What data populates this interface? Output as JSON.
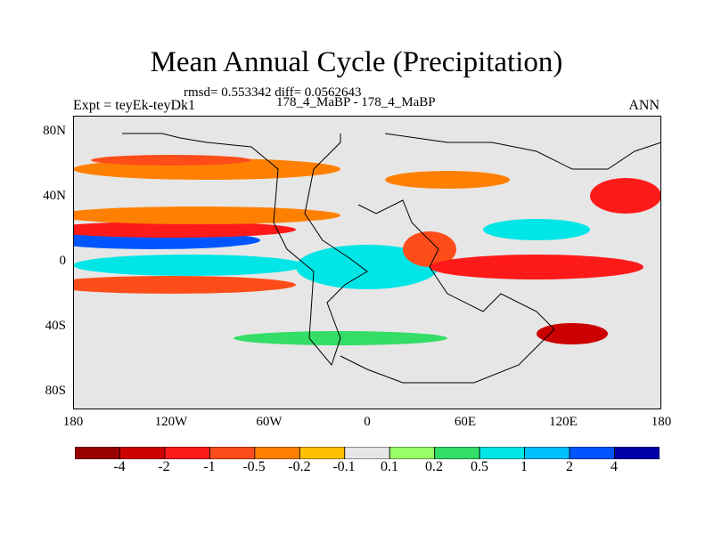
{
  "title": "Mean Annual Cycle (Precipitation)",
  "stats_line": "rmsd= 0.553342 diff= 0.0562643",
  "experiment_label": "Expt = teyEk-teyDk1",
  "run_label": "178_4_MaBP - 178_4_MaBP",
  "season_label": "ANN",
  "lat_labels": [
    "80N",
    "40N",
    "0",
    "40S",
    "80S"
  ],
  "lon_labels": [
    "180",
    "120W",
    "60W",
    "0",
    "60E",
    "120E",
    "180"
  ],
  "colorbar": {
    "labels": [
      "-4",
      "-2",
      "-1",
      "-0.5",
      "-0.2",
      "-0.1",
      "0.1",
      "0.2",
      "0.5",
      "1",
      "2",
      "4"
    ],
    "colors": [
      "#990000",
      "#cc0000",
      "#ff1a1a",
      "#ff4d1a",
      "#ff8000",
      "#ffbf00",
      "#e6e6e6",
      "#99ff66",
      "#33dd66",
      "#00e6e6",
      "#00bfff",
      "#0055ff",
      "#0000aa"
    ]
  },
  "map_colors": {
    "background": "#e6e6e6",
    "coastline": "#000000"
  }
}
